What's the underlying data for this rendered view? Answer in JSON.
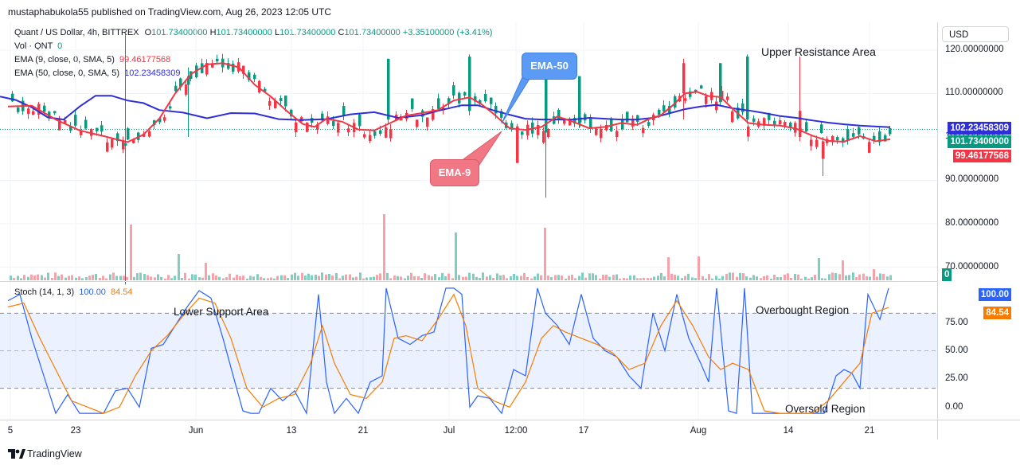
{
  "header": {
    "published": "mustaphabukola55 published on TradingView.com, Aug 26, 2023 12:05 UTC",
    "symbol": "Quant / US Dollar, 4h, BITTREX",
    "ohlc": {
      "o_label": "O",
      "o": "101.73400000",
      "h_label": "H",
      "h": "101.73400000",
      "l_label": "L",
      "l": "101.73400000",
      "c_label": "C",
      "c": "101.73400000",
      "change": "+3.35100000 (+3.41%)"
    },
    "vol_label": "Vol · QNT",
    "vol_value": "0",
    "ema9_label": "EMA (9, close, 0, SMA, 5)",
    "ema9_value": "99.46177568",
    "ema50_label": "EMA (50, close, 0, SMA, 5)",
    "ema50_value": "102.23458309"
  },
  "currency_button": "USD",
  "price_tags": {
    "ema50": "102.23458309",
    "last": "101.73400000",
    "ema9": "99.46177568",
    "volume": "0"
  },
  "stoch": {
    "label": "Stoch (14, 1, 3)",
    "k": "100.00",
    "d": "84.54",
    "ticks": [
      "75.00",
      "50.00",
      "25.00",
      "0.00"
    ],
    "tag_k": "100.00",
    "tag_d": "84.54"
  },
  "annotations": {
    "upper_resistance": "Upper Resistance Area",
    "lower_support": "Lower Support Area",
    "overbought": "Overbought Region",
    "oversold": "Oversold Region",
    "ema50_callout": "EMA-50",
    "ema9_callout": "EMA-9"
  },
  "x_ticks": [
    "5",
    "23",
    "Jun",
    "13",
    "21",
    "Jul",
    "12:00",
    "17",
    "Aug",
    "14",
    "21"
  ],
  "footer": {
    "brand": "TradingView"
  },
  "colors": {
    "up": "#089981",
    "down": "#f23645",
    "ema9": "#f23645",
    "ema50": "#2f2fd8",
    "stoch_k": "#2962ff",
    "stoch_d": "#f57c00",
    "vol_up": "#7fcfc1",
    "vol_down": "#f7a1a8"
  },
  "chart_data": {
    "type": "candlestick",
    "title": "Quant / US Dollar, 4h, BITTREX",
    "y_ticks": [
      120,
      110,
      100,
      90,
      80,
      70
    ],
    "y_tick_labels": [
      "120.00000000",
      "110.00000000",
      "100.00000000",
      "90.00000000",
      "80.00000000",
      "70.00000000"
    ],
    "ylim": [
      66.8,
      126.4
    ],
    "x_range_bars": [
      0,
      300
    ],
    "last_price": 101.734,
    "series": [
      {
        "name": "EMA 50",
        "points": [
          [
            0,
            109.3
          ],
          [
            20,
            108.5
          ],
          [
            40,
            106.8
          ],
          [
            60,
            104.5
          ],
          [
            80,
            104.0
          ],
          [
            100,
            107.0
          ],
          [
            120,
            109.5
          ],
          [
            140,
            109.5
          ],
          [
            160,
            108.4
          ],
          [
            180,
            107.8
          ],
          [
            200,
            106.2
          ],
          [
            230,
            105.6
          ],
          [
            260,
            104.3
          ],
          [
            290,
            105.5
          ],
          [
            320,
            105.4
          ],
          [
            350,
            104.1
          ],
          [
            380,
            103.9
          ],
          [
            410,
            104.1
          ],
          [
            440,
            105.2
          ],
          [
            470,
            105.7
          ],
          [
            500,
            104.4
          ],
          [
            530,
            105.0
          ],
          [
            550,
            106.0
          ],
          [
            580,
            107.3
          ],
          [
            600,
            107.3
          ],
          [
            620,
            106.1
          ],
          [
            640,
            105.1
          ],
          [
            660,
            104.2
          ],
          [
            680,
            104.0
          ],
          [
            700,
            104.0
          ],
          [
            720,
            104.0
          ],
          [
            740,
            104.4
          ],
          [
            760,
            104.2
          ],
          [
            780,
            104.0
          ],
          [
            800,
            104.0
          ],
          [
            820,
            104.4
          ],
          [
            840,
            105.4
          ],
          [
            860,
            106.4
          ],
          [
            880,
            107.0
          ],
          [
            900,
            107.4
          ],
          [
            920,
            106.6
          ],
          [
            940,
            106.1
          ],
          [
            960,
            105.5
          ],
          [
            980,
            104.8
          ],
          [
            1000,
            104.4
          ],
          [
            1020,
            103.8
          ],
          [
            1040,
            103.3
          ],
          [
            1060,
            102.9
          ],
          [
            1080,
            102.6
          ],
          [
            1100,
            102.4
          ],
          [
            1118,
            102.23
          ]
        ]
      },
      {
        "name": "EMA 9",
        "points": [
          [
            10,
            107.0
          ],
          [
            40,
            107.2
          ],
          [
            70,
            104.0
          ],
          [
            100,
            101.5
          ],
          [
            130,
            100.2
          ],
          [
            160,
            98.8
          ],
          [
            180,
            100.5
          ],
          [
            200,
            104.2
          ],
          [
            220,
            110.0
          ],
          [
            240,
            114.5
          ],
          [
            260,
            116.7
          ],
          [
            280,
            117.0
          ],
          [
            300,
            116.0
          ],
          [
            320,
            112.0
          ],
          [
            340,
            109.3
          ],
          [
            360,
            106.0
          ],
          [
            380,
            103.0
          ],
          [
            395,
            102.3
          ],
          [
            410,
            104.2
          ],
          [
            430,
            103.5
          ],
          [
            450,
            101.7
          ],
          [
            470,
            101.5
          ],
          [
            490,
            103.2
          ],
          [
            510,
            104.9
          ],
          [
            530,
            105.5
          ],
          [
            550,
            106.2
          ],
          [
            570,
            108.4
          ],
          [
            590,
            109.1
          ],
          [
            605,
            107.5
          ],
          [
            620,
            105.3
          ],
          [
            640,
            102.0
          ],
          [
            660,
            101.6
          ],
          [
            680,
            102.3
          ],
          [
            700,
            104.7
          ],
          [
            720,
            103.5
          ],
          [
            740,
            102.0
          ],
          [
            760,
            102.3
          ],
          [
            780,
            103.2
          ],
          [
            800,
            102.8
          ],
          [
            815,
            104.1
          ],
          [
            830,
            105.0
          ],
          [
            845,
            107.3
          ],
          [
            860,
            110.0
          ],
          [
            875,
            110.4
          ],
          [
            890,
            109.4
          ],
          [
            905,
            109.2
          ],
          [
            920,
            106.5
          ],
          [
            940,
            103.2
          ],
          [
            960,
            102.8
          ],
          [
            980,
            102.6
          ],
          [
            1000,
            101.9
          ],
          [
            1020,
            100.3
          ],
          [
            1040,
            99.1
          ],
          [
            1060,
            98.9
          ],
          [
            1080,
            100.2
          ],
          [
            1100,
            99.0
          ],
          [
            1118,
            99.46
          ]
        ]
      }
    ],
    "stoch_ylim": [
      -5,
      105
    ],
    "stoch_levels": [
      80,
      50,
      20
    ],
    "stoch_series": [
      {
        "name": "%K",
        "x": [
          10,
          25,
          40,
          55,
          70,
          85,
          100,
          115,
          130,
          145,
          160,
          175,
          190,
          205,
          220,
          235,
          250,
          265,
          280,
          295,
          305,
          315,
          325,
          340,
          355,
          370,
          385,
          400,
          410,
          420,
          435,
          450,
          465,
          480,
          485,
          500,
          515,
          530,
          545,
          560,
          570,
          580,
          590,
          600,
          615,
          630,
          645,
          660,
          675,
          685,
          700,
          715,
          730,
          745,
          760,
          775,
          790,
          805,
          820,
          835,
          850,
          865,
          880,
          890,
          900,
          915,
          925,
          935,
          945,
          960,
          975,
          990,
          1005,
          1020,
          1035,
          1050,
          1060,
          1070,
          1080,
          1090,
          1105,
          1116
        ],
        "y": [
          90,
          95,
          60,
          30,
          0,
          15,
          0,
          0,
          0,
          18,
          20,
          5,
          52,
          55,
          70,
          85,
          98,
          92,
          60,
          25,
          2,
          0,
          0,
          20,
          10,
          18,
          0,
          95,
          25,
          0,
          12,
          0,
          25,
          30,
          100,
          60,
          55,
          62,
          65,
          100,
          100,
          95,
          5,
          14,
          12,
          0,
          35,
          30,
          100,
          80,
          70,
          55,
          95,
          60,
          50,
          45,
          30,
          20,
          80,
          50,
          95,
          60,
          40,
          25,
          100,
          2,
          0,
          100,
          0,
          0,
          0,
          0,
          0,
          0,
          0,
          30,
          35,
          32,
          20,
          95,
          75,
          100
        ]
      },
      {
        "name": "%D",
        "x": [
          10,
          30,
          50,
          70,
          90,
          110,
          130,
          150,
          170,
          190,
          210,
          230,
          250,
          270,
          290,
          310,
          330,
          350,
          370,
          390,
          405,
          420,
          440,
          460,
          480,
          495,
          510,
          530,
          550,
          570,
          585,
          600,
          620,
          640,
          660,
          680,
          695,
          710,
          730,
          750,
          770,
          790,
          810,
          830,
          850,
          870,
          890,
          905,
          920,
          940,
          960,
          980,
          1000,
          1020,
          1040,
          1060,
          1080,
          1095,
          1116
        ],
        "y": [
          85,
          88,
          60,
          35,
          10,
          5,
          0,
          5,
          30,
          50,
          62,
          78,
          92,
          88,
          60,
          20,
          5,
          12,
          15,
          40,
          70,
          40,
          15,
          12,
          25,
          60,
          62,
          58,
          75,
          95,
          70,
          20,
          10,
          5,
          25,
          60,
          70,
          65,
          60,
          55,
          48,
          35,
          40,
          70,
          90,
          70,
          45,
          35,
          40,
          35,
          2,
          0,
          0,
          0,
          10,
          25,
          40,
          80,
          84.54
        ]
      }
    ]
  }
}
